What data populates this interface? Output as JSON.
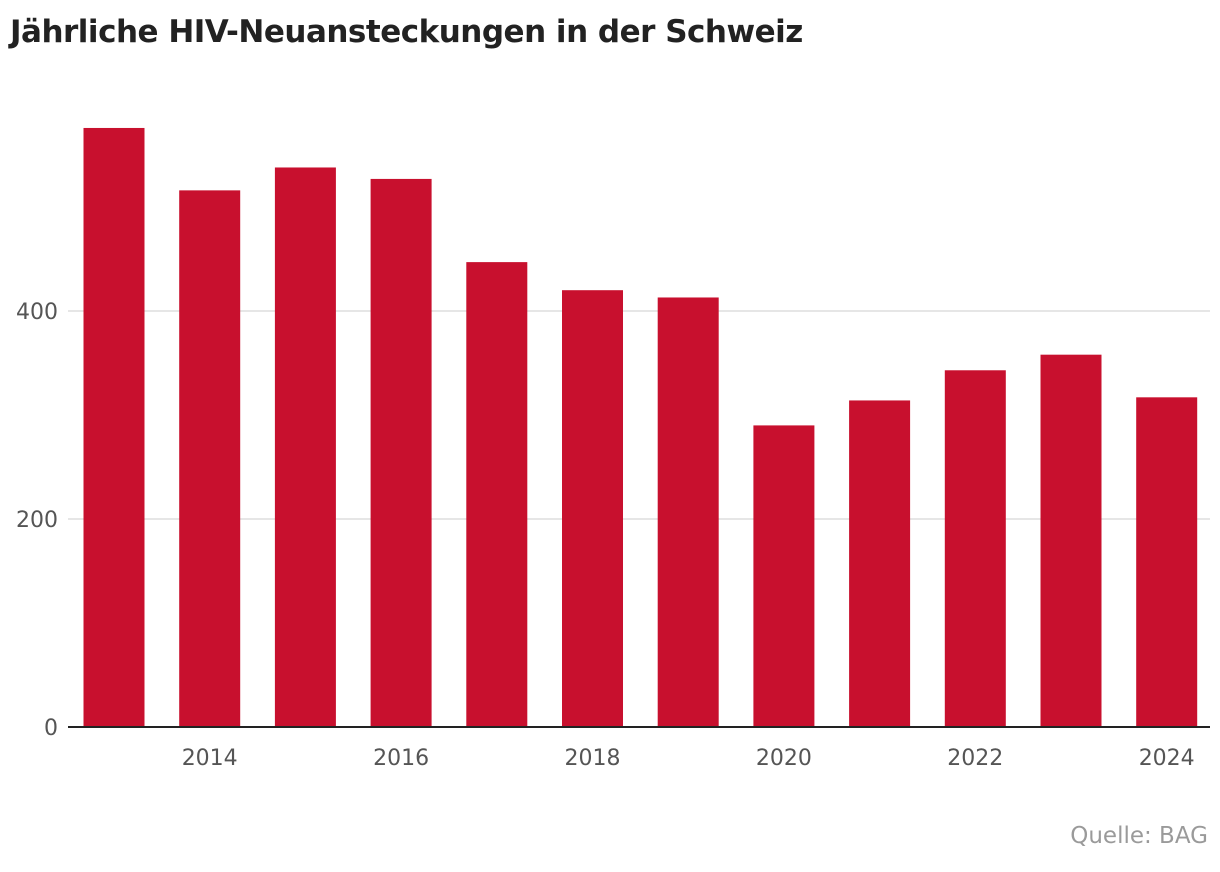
{
  "colors": {
    "bar": "#c8102e",
    "grid": "#dedede",
    "axis": "#222222"
  },
  "source": "Quelle: BAG",
  "chart_data": {
    "type": "bar",
    "title": "Jährliche HIV-Neuansteckungen in der Schweiz",
    "xlabel": "",
    "ylabel": "",
    "categories": [
      "2013",
      "2014",
      "2015",
      "2016",
      "2017",
      "2018",
      "2019",
      "2020",
      "2021",
      "2022",
      "2023",
      "2024"
    ],
    "values": [
      576,
      516,
      538,
      527,
      447,
      420,
      413,
      290,
      314,
      343,
      358,
      317
    ],
    "x_tick_labels": [
      "2014",
      "2016",
      "2018",
      "2020",
      "2022",
      "2024"
    ],
    "y_ticks": [
      0,
      200,
      400
    ],
    "ylim": [
      0,
      600
    ],
    "grid": true
  }
}
